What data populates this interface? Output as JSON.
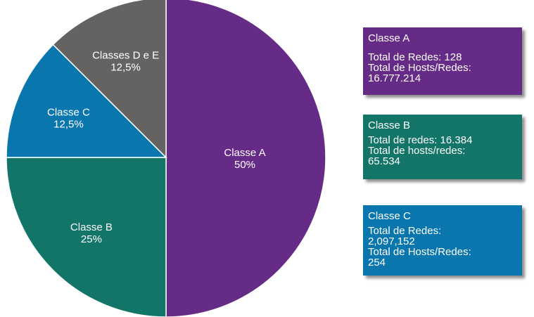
{
  "chart_data": {
    "type": "pie",
    "title": "",
    "slices": [
      {
        "label": "Classe A",
        "value_label": "50%",
        "value": 50,
        "color": "#652b87"
      },
      {
        "label": "Classe B",
        "value_label": "25%",
        "value": 25,
        "color": "#137568"
      },
      {
        "label": "Classe C",
        "value_label": "12,5%",
        "value": 12.5,
        "color": "#0a76ae"
      },
      {
        "label": "Classes D e E",
        "value_label": "12,5%",
        "value": 12.5,
        "color": "#656262"
      }
    ],
    "start": "12 o'clock",
    "direction": "clockwise"
  },
  "info_boxes": [
    {
      "title": "Classe A",
      "lines": [
        "Total de Redes: 128",
        "Total de Hosts/Redes:",
        "16.777.214"
      ],
      "color": "#652b87"
    },
    {
      "title": "Classe B",
      "lines": [
        "Total de redes: 16.384",
        "Total de hosts/redes:",
        "65.534"
      ],
      "color": "#137568"
    },
    {
      "title": "Classe C",
      "lines": [
        "Total de Redes:",
        "2,097,152",
        "Total de Hosts/Redes:",
        "254"
      ],
      "color": "#0a76ae"
    }
  ]
}
